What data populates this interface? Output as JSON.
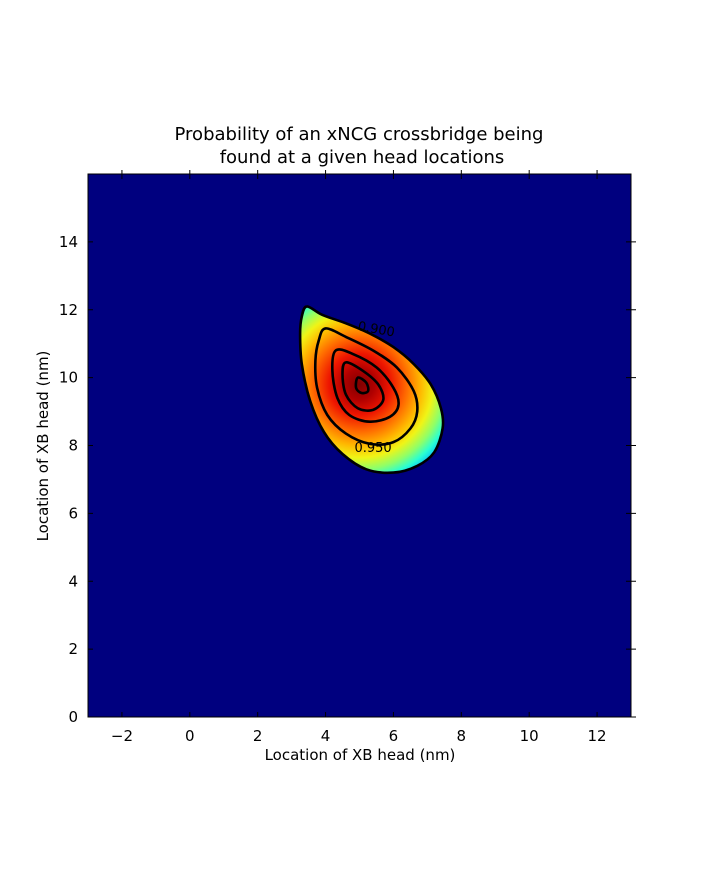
{
  "chart_data": {
    "type": "heatmap",
    "title_line1": "Probability of an xNCG crossbridge being",
    "title_line2": "found at a given head locations",
    "xlabel": "Location of XB head (nm)",
    "ylabel": "Location of XB head (nm)",
    "xlim": [
      -3,
      13
    ],
    "ylim": [
      0,
      16
    ],
    "xticks": [
      -2,
      0,
      2,
      4,
      6,
      8,
      10,
      12
    ],
    "xtick_labels": [
      "−2",
      "0",
      "2",
      "4",
      "6",
      "8",
      "10",
      "12"
    ],
    "yticks": [
      0,
      2,
      4,
      6,
      8,
      10,
      12,
      14
    ],
    "ytick_labels": [
      "0",
      "2",
      "4",
      "6",
      "8",
      "10",
      "12",
      "14"
    ],
    "colormap": "jet",
    "background_color": "#00007f",
    "grid": false,
    "peak": {
      "x": 5.0,
      "y": 9.8
    },
    "contour_levels": [
      {
        "label": "0.900",
        "points": [
          [
            3.45,
            12.1
          ],
          [
            3.9,
            11.85
          ],
          [
            4.6,
            11.6
          ],
          [
            5.3,
            11.3
          ],
          [
            6.0,
            10.9
          ],
          [
            6.6,
            10.4
          ],
          [
            7.1,
            9.8
          ],
          [
            7.4,
            9.1
          ],
          [
            7.45,
            8.5
          ],
          [
            7.2,
            7.8
          ],
          [
            6.7,
            7.4
          ],
          [
            6.0,
            7.2
          ],
          [
            5.2,
            7.3
          ],
          [
            4.5,
            7.75
          ],
          [
            3.95,
            8.4
          ],
          [
            3.55,
            9.3
          ],
          [
            3.3,
            10.4
          ],
          [
            3.25,
            11.3
          ],
          [
            3.3,
            11.8
          ]
        ],
        "label_at": [
          5.5,
          11.45
        ]
      },
      {
        "label": "0.950",
        "points": [
          [
            4.0,
            11.45
          ],
          [
            4.6,
            11.2
          ],
          [
            5.4,
            10.8
          ],
          [
            6.1,
            10.3
          ],
          [
            6.6,
            9.6
          ],
          [
            6.7,
            9.0
          ],
          [
            6.5,
            8.5
          ],
          [
            6.0,
            8.1
          ],
          [
            5.3,
            8.05
          ],
          [
            4.6,
            8.35
          ],
          [
            4.05,
            8.9
          ],
          [
            3.75,
            9.7
          ],
          [
            3.7,
            10.5
          ],
          [
            3.8,
            11.1
          ]
        ],
        "label_at": [
          5.4,
          7.95
        ]
      },
      {
        "label": "",
        "points": [
          [
            4.3,
            10.8
          ],
          [
            4.8,
            10.7
          ],
          [
            5.5,
            10.3
          ],
          [
            6.0,
            9.7
          ],
          [
            6.15,
            9.2
          ],
          [
            5.9,
            8.85
          ],
          [
            5.3,
            8.7
          ],
          [
            4.7,
            8.9
          ],
          [
            4.35,
            9.4
          ],
          [
            4.2,
            10.2
          ]
        ],
        "label_at": null
      },
      {
        "label": "",
        "points": [
          [
            4.6,
            10.45
          ],
          [
            5.1,
            10.2
          ],
          [
            5.55,
            9.8
          ],
          [
            5.7,
            9.35
          ],
          [
            5.4,
            9.05
          ],
          [
            4.95,
            9.1
          ],
          [
            4.6,
            9.5
          ],
          [
            4.5,
            10.1
          ]
        ],
        "label_at": null
      },
      {
        "label": "",
        "points": [
          [
            4.95,
            10.0
          ],
          [
            5.2,
            9.85
          ],
          [
            5.25,
            9.6
          ],
          [
            5.05,
            9.55
          ],
          [
            4.9,
            9.7
          ]
        ],
        "label_at": null
      }
    ]
  }
}
